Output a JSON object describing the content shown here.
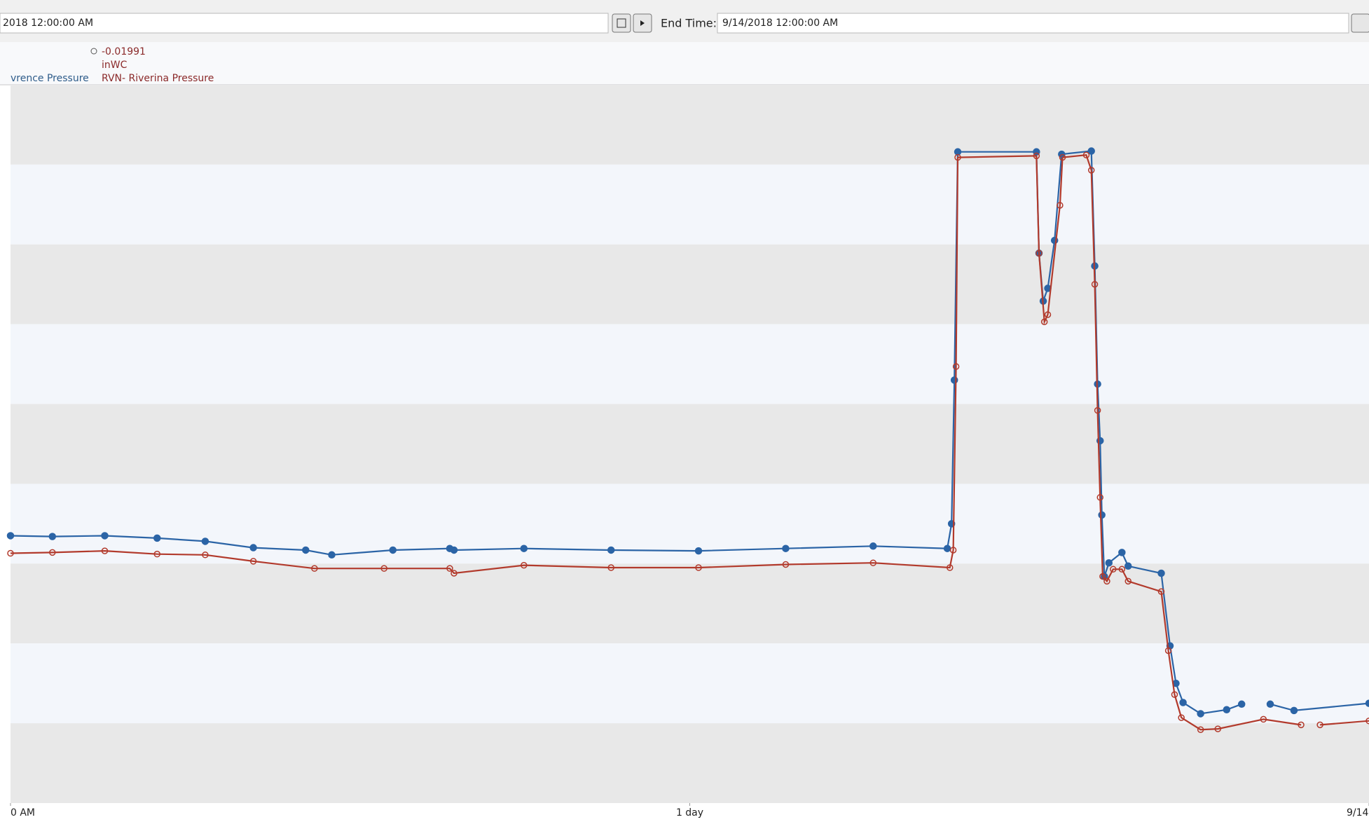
{
  "toolbar": {
    "start_time": "2018 12:00:00 AM",
    "end_time_label": "End Time:",
    "end_time": "9/14/2018 12:00:00 AM"
  },
  "legend": [
    {
      "name": "vrence Pressure"
    },
    {
      "value": "-0.01991",
      "unit": "inWC",
      "name": "RVN- Riverina Pressure"
    }
  ],
  "chart_data": {
    "type": "line",
    "xlim": [
      0,
      48
    ],
    "ylim": [
      0,
      9
    ],
    "xticks": [
      {
        "value": 0,
        "label": "0 AM"
      },
      {
        "value": 24,
        "label": "1 day"
      },
      {
        "value": 48,
        "label": "9/14"
      }
    ],
    "series": [
      {
        "name": "vrence Pressure",
        "color": "#2b64a6",
        "marker": "filled",
        "x": [
          0,
          1.48,
          3.33,
          5.18,
          6.88,
          8.58,
          10.43,
          11.35,
          13.51,
          15.52,
          15.67,
          18.14,
          21.22,
          24.31,
          27.39,
          30.48,
          33.1,
          33.25,
          33.35,
          33.47,
          36.25,
          36.34,
          36.49,
          36.65,
          36.89,
          37.14,
          38.19,
          38.31,
          38.41,
          38.5,
          38.56,
          38.65,
          38.81,
          39.27,
          39.49,
          40.66,
          40.97,
          41.18,
          41.43,
          42.05,
          42.97,
          43.5,
          44.0,
          44.51,
          45.35,
          48.0
        ],
        "values": [
          3.35,
          3.34,
          3.35,
          3.32,
          3.28,
          3.2,
          3.17,
          3.11,
          3.17,
          3.19,
          3.17,
          3.19,
          3.17,
          3.16,
          3.19,
          3.22,
          3.19,
          3.5,
          5.3,
          8.16,
          8.16,
          6.89,
          6.29,
          6.45,
          7.05,
          8.13,
          8.17,
          6.73,
          5.25,
          4.54,
          3.61,
          2.84,
          3.01,
          3.14,
          2.97,
          2.88,
          1.97,
          1.5,
          1.26,
          1.12,
          1.17,
          1.24,
          null,
          1.24,
          1.16,
          1.25
        ]
      },
      {
        "name": "RVN- Riverina Pressure",
        "color": "#b23a2c",
        "marker": "hollow",
        "x": [
          0,
          1.48,
          3.33,
          5.18,
          6.88,
          8.58,
          10.74,
          13.2,
          15.52,
          15.67,
          18.14,
          21.22,
          24.31,
          27.39,
          30.48,
          33.19,
          33.31,
          33.41,
          33.47,
          36.25,
          36.34,
          36.53,
          36.65,
          37.08,
          37.17,
          38.01,
          38.19,
          38.31,
          38.41,
          38.5,
          38.59,
          38.74,
          38.96,
          39.27,
          39.49,
          40.66,
          40.91,
          41.13,
          41.37,
          42.05,
          42.66,
          44.27,
          45.6,
          46.0,
          46.27,
          48.0
        ],
        "values": [
          3.13,
          3.14,
          3.16,
          3.12,
          3.11,
          3.03,
          2.94,
          2.94,
          2.94,
          2.88,
          2.98,
          2.95,
          2.95,
          2.99,
          3.01,
          2.95,
          3.17,
          5.47,
          8.09,
          8.11,
          6.89,
          6.03,
          6.12,
          7.49,
          8.09,
          8.12,
          7.93,
          6.5,
          4.92,
          3.83,
          2.84,
          2.78,
          2.93,
          2.93,
          2.78,
          2.65,
          1.91,
          1.36,
          1.07,
          0.92,
          0.93,
          1.05,
          0.98,
          null,
          0.98,
          1.03
        ]
      }
    ]
  }
}
